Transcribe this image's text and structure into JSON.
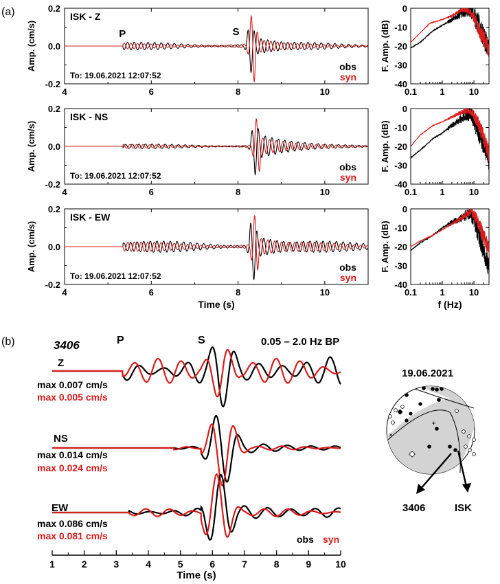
{
  "figure": {
    "panel_a_label": "(a)",
    "panel_b_label": "(b)",
    "colors": {
      "obs": "#000000",
      "syn": "#d81b1b",
      "shade": "#d3d3d3"
    }
  },
  "chart_data": [
    {
      "type": "line",
      "panel": "a",
      "row": 0,
      "station_label": "ISK - Z",
      "ylabel": "Amp. (cm/s)",
      "xlabel": "",
      "xlim": [
        4,
        11
      ],
      "ylim": [
        -0.2,
        0.2
      ],
      "xticks": [
        "4",
        "6",
        "8",
        "10"
      ],
      "yticks": [
        "0.2",
        "0.0",
        "-0.2"
      ],
      "origin_time": "To: 19.06.2021 12:07:52",
      "phases": [
        "P",
        "S"
      ],
      "series": [
        {
          "name": "obs",
          "t_p": 5.35,
          "t_s": 8.25,
          "pre_amp": 0.02,
          "peak": 0.14,
          "coda": 0.05
        },
        {
          "name": "syn",
          "t_p": 5.35,
          "t_s": 8.3,
          "pre_amp": 0.015,
          "peak": 0.2,
          "coda": 0.04
        }
      ]
    },
    {
      "type": "line",
      "panel": "a",
      "row": 1,
      "station_label": "ISK - NS",
      "ylabel": "Amp. (cm/s)",
      "xlabel": "",
      "xlim": [
        4,
        11
      ],
      "ylim": [
        -0.2,
        0.2
      ],
      "xticks": [
        "4",
        "6",
        "8",
        "10"
      ],
      "yticks": [
        "0.2",
        "0.0",
        "-0.2"
      ],
      "origin_time": "To: 19.06.2021 12:07:52",
      "series": [
        {
          "name": "obs",
          "t_p": 5.35,
          "t_s": 8.35,
          "pre_amp": 0.012,
          "peak": 0.15,
          "coda": 0.07
        },
        {
          "name": "syn",
          "t_p": 5.35,
          "t_s": 8.4,
          "pre_amp": 0.01,
          "peak": 0.16,
          "coda": 0.05
        }
      ]
    },
    {
      "type": "line",
      "panel": "a",
      "row": 2,
      "station_label": "ISK - EW",
      "ylabel": "Amp. (cm/s)",
      "xlabel": "Time (s)",
      "xlim": [
        4,
        11
      ],
      "ylim": [
        -0.2,
        0.2
      ],
      "xticks": [
        "4",
        "6",
        "8",
        "10"
      ],
      "yticks": [
        "0.2",
        "0.0",
        "-0.2"
      ],
      "origin_time": "To: 19.06.2021 12:07:52",
      "series": [
        {
          "name": "obs",
          "t_p": 5.35,
          "t_s": 8.3,
          "pre_amp": 0.03,
          "peak": 0.18,
          "coda": 0.06
        },
        {
          "name": "syn",
          "t_p": 5.35,
          "t_s": 8.35,
          "pre_amp": 0.025,
          "peak": 0.17,
          "coda": 0.05
        }
      ]
    },
    {
      "type": "line",
      "panel": "a-spectrum",
      "row": 0,
      "ylabel": "F. Amp. (dB)",
      "xlabel": "",
      "xscale": "log",
      "xlim": [
        0.1,
        30
      ],
      "ylim": [
        -40,
        0
      ],
      "xticks": [
        "0.1",
        "1",
        "10"
      ],
      "yticks": [
        "0",
        "-10",
        "-20",
        "-30",
        "-40"
      ],
      "series": [
        {
          "name": "obs",
          "shape": [
            [
              0.1,
              -21
            ],
            [
              0.2,
              -18
            ],
            [
              0.5,
              -12
            ],
            [
              1,
              -9
            ],
            [
              2,
              -6
            ],
            [
              5,
              -2
            ],
            [
              8,
              -1
            ],
            [
              12,
              -6
            ],
            [
              20,
              -15
            ],
            [
              30,
              -22
            ]
          ]
        },
        {
          "name": "syn",
          "shape": [
            [
              0.1,
              -18
            ],
            [
              0.2,
              -13
            ],
            [
              0.4,
              -8
            ],
            [
              1,
              -6
            ],
            [
              2,
              -4
            ],
            [
              4,
              -1
            ],
            [
              7,
              -1
            ],
            [
              10,
              -5
            ],
            [
              15,
              -12
            ],
            [
              30,
              -22
            ]
          ]
        }
      ]
    },
    {
      "type": "line",
      "panel": "a-spectrum",
      "row": 1,
      "ylabel": "F. Amp. (dB)",
      "xlabel": "",
      "xscale": "log",
      "xlim": [
        0.1,
        30
      ],
      "ylim": [
        -40,
        0
      ],
      "xticks": [
        "0.1",
        "1",
        "10"
      ],
      "yticks": [
        "0",
        "-10",
        "-20",
        "-30",
        "-40"
      ],
      "series": [
        {
          "name": "obs",
          "shape": [
            [
              0.1,
              -26
            ],
            [
              0.2,
              -22
            ],
            [
              0.5,
              -16
            ],
            [
              1,
              -13
            ],
            [
              2,
              -9
            ],
            [
              5,
              -4
            ],
            [
              8,
              -3
            ],
            [
              12,
              -9
            ],
            [
              20,
              -18
            ],
            [
              30,
              -28
            ]
          ]
        },
        {
          "name": "syn",
          "shape": [
            [
              0.1,
              -20
            ],
            [
              0.2,
              -14
            ],
            [
              0.5,
              -9
            ],
            [
              1,
              -7
            ],
            [
              3,
              -3
            ],
            [
              6,
              -1
            ],
            [
              9,
              -2
            ],
            [
              13,
              -7
            ],
            [
              20,
              -15
            ],
            [
              30,
              -24
            ]
          ]
        }
      ]
    },
    {
      "type": "line",
      "panel": "a-spectrum",
      "row": 2,
      "ylabel": "F. Amp. (dB)",
      "xlabel": "f (Hz)",
      "xscale": "log",
      "xlim": [
        0.1,
        30
      ],
      "ylim": [
        -40,
        0
      ],
      "xticks": [
        "0.1",
        "1",
        "10"
      ],
      "yticks": [
        "0",
        "-10",
        "-20",
        "-30",
        "-40"
      ],
      "series": [
        {
          "name": "obs",
          "shape": [
            [
              0.1,
              -22
            ],
            [
              0.2,
              -18
            ],
            [
              0.5,
              -14
            ],
            [
              1,
              -10
            ],
            [
              2,
              -7
            ],
            [
              4,
              -5
            ],
            [
              7,
              -2
            ],
            [
              10,
              -5
            ],
            [
              15,
              -14
            ],
            [
              22,
              -24
            ],
            [
              30,
              -32
            ]
          ]
        },
        {
          "name": "syn",
          "shape": [
            [
              0.1,
              -20
            ],
            [
              0.2,
              -17
            ],
            [
              0.5,
              -14
            ],
            [
              1,
              -11
            ],
            [
              2,
              -8
            ],
            [
              5,
              -4
            ],
            [
              8,
              -1
            ],
            [
              12,
              -5
            ],
            [
              18,
              -12
            ],
            [
              30,
              -22
            ]
          ]
        }
      ]
    },
    {
      "type": "line",
      "panel": "b",
      "station": "3406",
      "filter_label": "0.05 – 2.0 Hz BP",
      "xlabel": "Time (s)",
      "xlim": [
        1,
        10
      ],
      "xticks": [
        "1",
        "2",
        "3",
        "4",
        "5",
        "6",
        "7",
        "8",
        "9",
        "10"
      ],
      "phases": [
        "P",
        "S"
      ],
      "traces": [
        {
          "component": "Z",
          "obs_max": "max 0.007 cm/s",
          "syn_max": "max 0.005 cm/s",
          "series": [
            {
              "name": "obs",
              "t_p": 3.2,
              "t_s": 5.8,
              "pre_amp": 0.4,
              "peak": 1.0,
              "peak_time": 6.3,
              "coda": 0.35
            },
            {
              "name": "syn",
              "t_p": 3.2,
              "t_s": 5.8,
              "pre_amp": 0.35,
              "peak": 0.75,
              "peak_time": 6.25,
              "coda": 0.08
            }
          ]
        },
        {
          "component": "NS",
          "obs_max": "max 0.014 cm/s",
          "syn_max": "max 0.024 cm/s",
          "series": [
            {
              "name": "obs",
              "t_p": 4.8,
              "t_s": 5.8,
              "pre_amp": 0.05,
              "peak": 1.0,
              "peak_time": 6.3,
              "coda": 0.18
            },
            {
              "name": "syn",
              "t_p": 4.8,
              "t_s": 5.8,
              "pre_amp": 0.05,
              "peak": 1.0,
              "peak_time": 6.3,
              "coda": 0.1
            }
          ]
        },
        {
          "component": "EW",
          "obs_max": "max 0.086 cm/s",
          "syn_max": "max 0.081 cm/s",
          "series": [
            {
              "name": "obs",
              "t_p": 3.4,
              "t_s": 5.8,
              "pre_amp": 0.12,
              "peak": 1.0,
              "peak_time": 6.2,
              "coda": 0.25
            },
            {
              "name": "syn",
              "t_p": 3.4,
              "t_s": 5.8,
              "pre_amp": 0.1,
              "peak": 1.0,
              "peak_time": 6.15,
              "coda": 0.12
            }
          ]
        }
      ]
    }
  ],
  "legend": {
    "obs": "obs",
    "syn": "syn"
  },
  "focal_mechanism": {
    "date": "19.06.2021",
    "stations": [
      "3406",
      "ISK"
    ]
  }
}
